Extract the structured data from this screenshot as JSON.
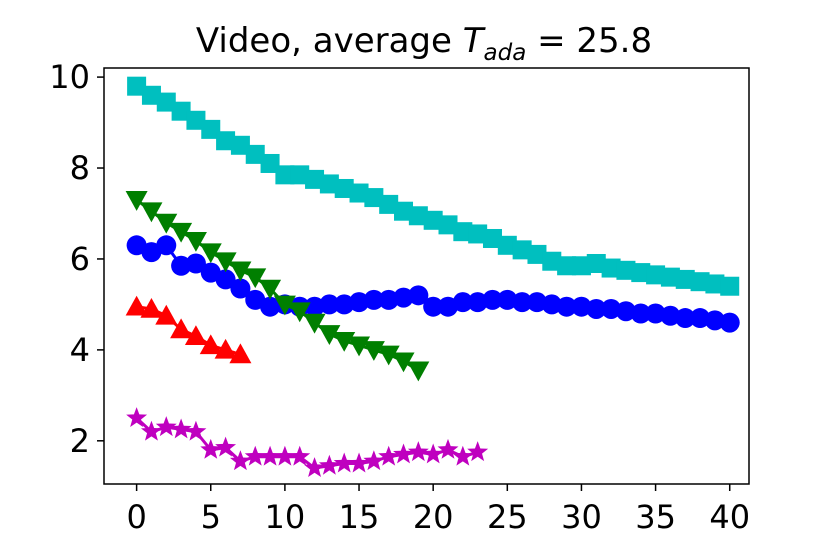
{
  "chart_data": {
    "type": "line",
    "title": "Video, average T_ada = 25.8",
    "title_parts": {
      "prefix": "Video, average ",
      "var": "T",
      "sub": "ada",
      "suffix": " = 25.8"
    },
    "xlabel": "",
    "ylabel": "",
    "xlim": [
      -2.2,
      41.3
    ],
    "ylim": [
      1.05,
      10.2
    ],
    "xticks": [
      0,
      5,
      10,
      15,
      20,
      25,
      30,
      35,
      40
    ],
    "yticks": [
      2,
      4,
      6,
      8,
      10
    ],
    "grid": false,
    "legend": "none",
    "series": [
      {
        "marker": "square",
        "color": "#00bfbf",
        "x": [
          0,
          1,
          2,
          3,
          4,
          5,
          6,
          7,
          8,
          9,
          10,
          11,
          12,
          13,
          14,
          15,
          16,
          17,
          18,
          19,
          20,
          21,
          22,
          23,
          24,
          25,
          26,
          27,
          28,
          29,
          30,
          31,
          32,
          33,
          34,
          35,
          36,
          37,
          38,
          39,
          40
        ],
        "y": [
          9.8,
          9.6,
          9.45,
          9.25,
          9.05,
          8.85,
          8.6,
          8.5,
          8.3,
          8.1,
          7.85,
          7.85,
          7.75,
          7.65,
          7.55,
          7.45,
          7.35,
          7.2,
          7.05,
          6.95,
          6.85,
          6.75,
          6.6,
          6.55,
          6.45,
          6.3,
          6.2,
          6.1,
          5.95,
          5.85,
          5.85,
          5.9,
          5.8,
          5.75,
          5.7,
          5.65,
          5.6,
          5.55,
          5.5,
          5.45,
          5.4
        ]
      },
      {
        "marker": "circle",
        "color": "#0000ff",
        "x": [
          0,
          1,
          2,
          3,
          4,
          5,
          6,
          7,
          8,
          9,
          10,
          11,
          12,
          13,
          14,
          15,
          16,
          17,
          18,
          19,
          20,
          21,
          22,
          23,
          24,
          25,
          26,
          27,
          28,
          29,
          30,
          31,
          32,
          33,
          34,
          35,
          36,
          37,
          38,
          39,
          40
        ],
        "y": [
          6.3,
          6.15,
          6.3,
          5.85,
          5.9,
          5.7,
          5.55,
          5.35,
          5.1,
          4.95,
          5.0,
          4.95,
          4.95,
          5.0,
          5.0,
          5.05,
          5.1,
          5.1,
          5.15,
          5.2,
          4.95,
          4.95,
          5.05,
          5.05,
          5.1,
          5.1,
          5.05,
          5.05,
          5.0,
          4.95,
          4.95,
          4.9,
          4.9,
          4.85,
          4.8,
          4.8,
          4.75,
          4.7,
          4.7,
          4.65,
          4.6
        ]
      },
      {
        "marker": "triangle-down",
        "color": "#007f00",
        "x": [
          0,
          1,
          2,
          3,
          4,
          5,
          6,
          7,
          8,
          9,
          10,
          11,
          12,
          13,
          14,
          15,
          16,
          17,
          18,
          19
        ],
        "y": [
          7.3,
          7.05,
          6.8,
          6.6,
          6.4,
          6.15,
          5.95,
          5.75,
          5.6,
          5.35,
          5.0,
          4.85,
          4.6,
          4.35,
          4.2,
          4.1,
          4.0,
          3.9,
          3.75,
          3.55
        ]
      },
      {
        "marker": "triangle-up",
        "color": "#ff0000",
        "x": [
          0,
          1,
          2,
          3,
          4,
          5,
          6,
          7
        ],
        "y": [
          4.95,
          4.9,
          4.75,
          4.45,
          4.3,
          4.1,
          4.0,
          3.9
        ]
      },
      {
        "marker": "star",
        "color": "#bf00bf",
        "x": [
          0,
          1,
          2,
          3,
          4,
          5,
          6,
          7,
          8,
          9,
          10,
          11,
          12,
          13,
          14,
          15,
          16,
          17,
          18,
          19,
          20,
          21,
          22,
          23
        ],
        "y": [
          2.5,
          2.2,
          2.3,
          2.25,
          2.2,
          1.8,
          1.85,
          1.55,
          1.65,
          1.65,
          1.65,
          1.65,
          1.4,
          1.45,
          1.5,
          1.5,
          1.55,
          1.65,
          1.7,
          1.75,
          1.7,
          1.8,
          1.65,
          1.75
        ]
      }
    ]
  }
}
